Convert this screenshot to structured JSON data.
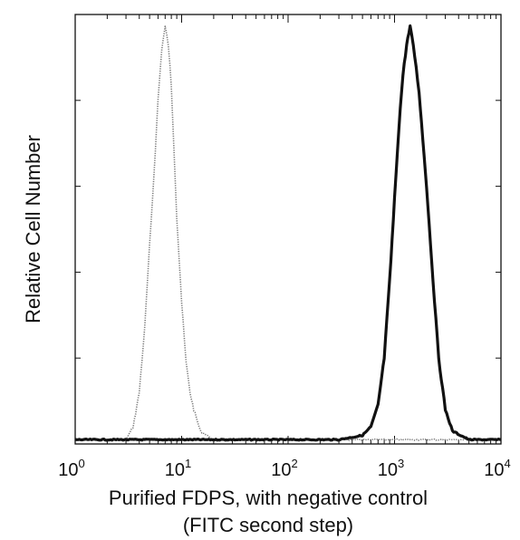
{
  "chart_data": {
    "type": "line",
    "title": "",
    "ylabel": "Relative Cell Number",
    "xlabel_line1": "Purified FDPS, with negative control",
    "xlabel_line2": "(FITC second step)",
    "x_scale": "log",
    "xlim": [
      1,
      10000
    ],
    "ylim": [
      0,
      1.0
    ],
    "grid": false,
    "legend": "none",
    "x_tick_labels": [
      {
        "base": "10",
        "exp": "0",
        "value": 1
      },
      {
        "base": "10",
        "exp": "1",
        "value": 10
      },
      {
        "base": "10",
        "exp": "2",
        "value": 100
      },
      {
        "base": "10",
        "exp": "3",
        "value": 1000
      },
      {
        "base": "10",
        "exp": "4",
        "value": 10000
      }
    ],
    "y_ticks": [
      0.2,
      0.4,
      0.6,
      0.8
    ],
    "series": [
      {
        "style": "dotted-light",
        "color": "#777777",
        "x": [
          1,
          2,
          3,
          3.5,
          4,
          4.5,
          5,
          5.5,
          6,
          6.5,
          7,
          7.5,
          8,
          8.5,
          9,
          10,
          11,
          12,
          13,
          15,
          20,
          100,
          10000
        ],
        "y": [
          0.01,
          0.01,
          0.01,
          0.04,
          0.12,
          0.27,
          0.46,
          0.63,
          0.8,
          0.92,
          0.97,
          0.93,
          0.83,
          0.68,
          0.53,
          0.33,
          0.19,
          0.12,
          0.08,
          0.03,
          0.01,
          0.01,
          0.01
        ]
      },
      {
        "style": "solid-heavy",
        "color": "#111111",
        "x": [
          1,
          10,
          100,
          300,
          500,
          600,
          700,
          800,
          900,
          1000,
          1100,
          1200,
          1300,
          1400,
          1500,
          1700,
          2000,
          2300,
          2600,
          3000,
          3500,
          5000,
          10000
        ],
        "y": [
          0.01,
          0.01,
          0.01,
          0.01,
          0.02,
          0.04,
          0.09,
          0.2,
          0.38,
          0.57,
          0.74,
          0.86,
          0.93,
          0.97,
          0.93,
          0.82,
          0.6,
          0.38,
          0.2,
          0.08,
          0.03,
          0.01,
          0.01
        ]
      }
    ]
  }
}
